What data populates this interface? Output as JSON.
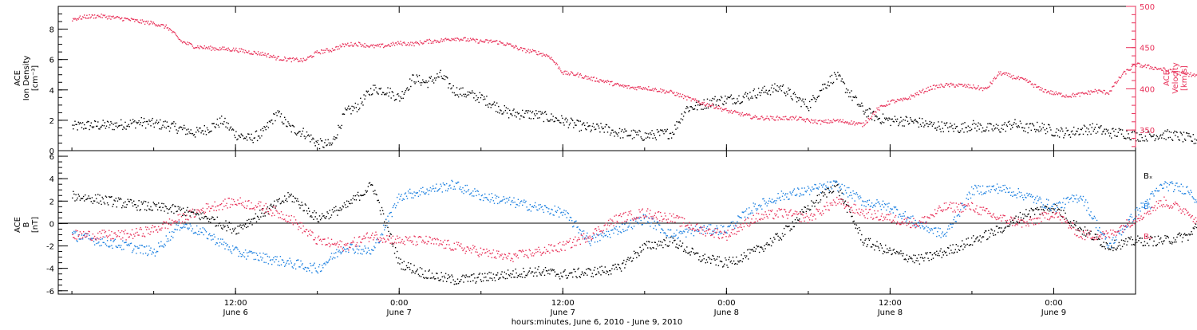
{
  "colors": {
    "black": "#000000",
    "pink": "#e8325a",
    "blue": "#1a7fe0"
  },
  "chart_data": [
    {
      "type": "scatter",
      "panel": "top",
      "ylabel_lines": [
        "ACE",
        "Ion Density",
        "[cm⁻³]"
      ],
      "y2label_lines": [
        "ACE",
        "Velocity",
        "[km/s]"
      ],
      "ylim": [
        0,
        9.5
      ],
      "y2lim": [
        325,
        500
      ],
      "yticks": [
        "0",
        "2",
        "4",
        "6",
        "8"
      ],
      "y2ticks": [
        "350",
        "400",
        "450",
        "500"
      ],
      "grid": false,
      "series": [
        {
          "key": "density",
          "color": "#000000",
          "points_hours": [
            0,
            1,
            3,
            5,
            7,
            9,
            10,
            11,
            12,
            13,
            14,
            15,
            16,
            17,
            18,
            19,
            20,
            21,
            22,
            23,
            24,
            25,
            26,
            27,
            28,
            30,
            32,
            34,
            36,
            37,
            38,
            39,
            40,
            42,
            44,
            45,
            46,
            47,
            48,
            49,
            50,
            51,
            52,
            53,
            54,
            55,
            56,
            57,
            58,
            59,
            60,
            61,
            62,
            63,
            64,
            65,
            66,
            67,
            68,
            69,
            70,
            71,
            72,
            73,
            74,
            75,
            76,
            77,
            78,
            79,
            80,
            81,
            82,
            83
          ],
          "values": [
            1.6,
            1.7,
            1.7,
            1.9,
            1.7,
            1.2,
            1.5,
            2.0,
            1.1,
            0.8,
            1.2,
            2.5,
            1.5,
            1.2,
            0.5,
            0.4,
            2.5,
            3.0,
            4.1,
            4.0,
            3.5,
            4.8,
            4.5,
            5.0,
            4.0,
            3.5,
            2.5,
            2.4,
            2.0,
            1.7,
            1.5,
            1.5,
            1.2,
            1.0,
            1.2,
            2.8,
            3.0,
            3.3,
            3.4,
            3.5,
            3.8,
            4.0,
            4.2,
            3.5,
            3.0,
            4.2,
            5.0,
            3.8,
            2.7,
            2.2,
            2.0,
            2.0,
            1.9,
            1.7,
            1.6,
            1.5,
            1.7,
            1.5,
            1.5,
            1.8,
            1.5,
            1.6,
            1.3,
            1.2,
            1.4,
            1.5,
            1.2,
            1.2,
            1.0,
            1.0,
            1.1,
            1.0,
            0.8,
            0.7
          ]
        },
        {
          "key": "velocity",
          "color": "#e8325a",
          "points_hours": [
            0,
            1,
            2,
            3,
            4,
            5,
            6,
            7,
            8,
            9,
            10,
            11,
            12,
            13,
            14,
            15,
            16,
            17,
            18,
            19,
            20,
            21,
            22,
            23,
            24,
            25,
            26,
            27,
            28,
            29,
            30,
            31,
            32,
            33,
            34,
            35,
            36,
            37,
            38,
            39,
            40,
            41,
            42,
            43,
            44,
            45,
            46,
            47,
            48,
            49,
            50,
            51,
            52,
            53,
            54,
            55,
            56,
            57,
            58,
            59,
            60,
            61,
            62,
            63,
            64,
            65,
            66,
            67,
            68,
            69,
            70,
            71,
            72,
            73,
            74,
            75,
            76,
            77,
            78,
            79,
            80,
            81,
            82,
            83
          ],
          "values": [
            485,
            488,
            489,
            487,
            485,
            482,
            480,
            475,
            458,
            452,
            450,
            449,
            448,
            445,
            443,
            438,
            436,
            435,
            445,
            448,
            454,
            455,
            452,
            453,
            456,
            455,
            458,
            459,
            462,
            460,
            458,
            458,
            454,
            448,
            445,
            440,
            420,
            418,
            413,
            410,
            405,
            402,
            402,
            399,
            396,
            390,
            384,
            380,
            374,
            370,
            366,
            365,
            365,
            365,
            362,
            360,
            362,
            360,
            357,
            375,
            385,
            387,
            395,
            402,
            405,
            405,
            403,
            400,
            420,
            415,
            410,
            400,
            395,
            392,
            394,
            398,
            396,
            418,
            430,
            427,
            424,
            420,
            418,
            414
          ]
        }
      ]
    },
    {
      "type": "scatter",
      "panel": "bottom",
      "ylabel_lines": [
        "ACE",
        "B",
        "[nT]"
      ],
      "ylim": [
        -6.3,
        6.5
      ],
      "yticks": [
        "-6",
        "-4",
        "-2",
        "0",
        "2",
        "4",
        "6"
      ],
      "grid": false,
      "legend_position": "right",
      "series": [
        {
          "name": "Bx",
          "color": "#000000",
          "points_hours": [
            0,
            2,
            4,
            6,
            8,
            10,
            12,
            14,
            16,
            18,
            20,
            22,
            24,
            26,
            28,
            30,
            32,
            34,
            36,
            38,
            40,
            42,
            44,
            46,
            48,
            50,
            52,
            54,
            56,
            58,
            60,
            62,
            64,
            66,
            68,
            70,
            72,
            74,
            76,
            78,
            80,
            82,
            83
          ],
          "values": [
            2.5,
            2.2,
            1.8,
            1.5,
            1.2,
            0.5,
            -0.5,
            1.0,
            2.5,
            0.5,
            1.5,
            3.5,
            -3.5,
            -4.5,
            -5.0,
            -4.8,
            -4.5,
            -4.2,
            -4.5,
            -4.3,
            -4.0,
            -2.0,
            -1.5,
            -3.0,
            -3.5,
            -2.5,
            -1.0,
            1.5,
            3.5,
            -1.5,
            -2.5,
            -3.2,
            -2.5,
            -1.5,
            -0.5,
            1.0,
            1.5,
            -0.5,
            -2.0,
            -1.5,
            -1.5,
            -1.0,
            1.0
          ]
        },
        {
          "name": "By",
          "color": "#1a7fe0",
          "points_hours": [
            0,
            2,
            4,
            6,
            8,
            10,
            12,
            14,
            16,
            18,
            20,
            22,
            24,
            26,
            28,
            30,
            32,
            34,
            36,
            38,
            40,
            42,
            44,
            46,
            48,
            50,
            52,
            54,
            56,
            58,
            60,
            62,
            64,
            66,
            68,
            70,
            72,
            74,
            76,
            78,
            80,
            82,
            83
          ],
          "values": [
            -1.0,
            -1.5,
            -2.0,
            -2.5,
            0.0,
            -1.0,
            -2.5,
            -3.0,
            -3.5,
            -4.0,
            -2.0,
            -2.5,
            2.5,
            3.0,
            3.5,
            2.5,
            2.0,
            1.5,
            1.0,
            -1.5,
            -0.5,
            0.5,
            -1.0,
            -0.5,
            -0.5,
            1.5,
            2.5,
            3.0,
            3.5,
            2.0,
            1.5,
            0.0,
            -1.0,
            3.0,
            3.2,
            2.5,
            1.5,
            2.5,
            -2.0,
            1.0,
            3.5,
            3.0,
            1.0
          ]
        },
        {
          "name": "Bz",
          "color": "#e8325a",
          "points_hours": [
            0,
            2,
            4,
            6,
            8,
            10,
            12,
            14,
            16,
            18,
            20,
            22,
            24,
            26,
            28,
            30,
            32,
            34,
            36,
            38,
            40,
            42,
            44,
            46,
            48,
            50,
            52,
            54,
            56,
            58,
            60,
            62,
            64,
            66,
            68,
            70,
            72,
            74,
            76,
            78,
            80,
            82,
            83
          ],
          "values": [
            -1.0,
            -1.0,
            -1.0,
            -0.5,
            0.5,
            1.5,
            2.0,
            1.5,
            0.5,
            -1.5,
            -2.0,
            -1.0,
            -1.5,
            -1.5,
            -2.0,
            -2.5,
            -3.0,
            -2.5,
            -2.0,
            -1.0,
            0.5,
            1.0,
            0.5,
            -0.5,
            -1.0,
            0.5,
            1.0,
            0.5,
            2.0,
            1.0,
            0.5,
            0.0,
            1.5,
            1.5,
            0.5,
            0.0,
            1.0,
            -1.0,
            -1.0,
            0.5,
            2.0,
            1.0,
            -1.0
          ]
        }
      ]
    }
  ],
  "x_axis": {
    "ticks": [
      {
        "hours": 12,
        "time": "12:00",
        "date": "June 6"
      },
      {
        "hours": 24,
        "time": "0:00",
        "date": "June 7"
      },
      {
        "hours": 36,
        "time": "12:00",
        "date": "June 7"
      },
      {
        "hours": 48,
        "time": "0:00",
        "date": "June 8"
      },
      {
        "hours": 60,
        "time": "12:00",
        "date": "June 8"
      },
      {
        "hours": 72,
        "time": "0:00",
        "date": "June 9"
      }
    ],
    "xlim_hours": [
      -1,
      78
    ],
    "xlabel": "hours:minutes, June  6, 2010 - June  9, 2010"
  },
  "legend_labels": [
    "Bₓ",
    "Bᵧ",
    "Bₔ"
  ]
}
